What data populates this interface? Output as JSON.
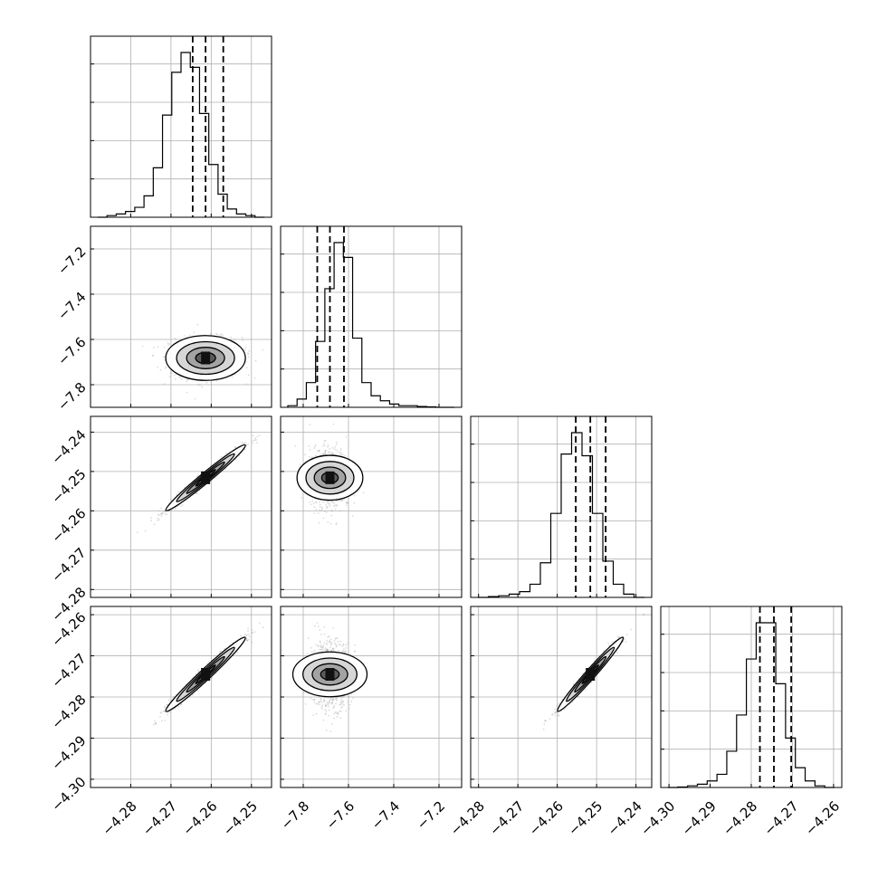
{
  "chart_data": {
    "type": "corner",
    "grid": true,
    "parameters": [
      {
        "range": [
          -4.29,
          -4.245
        ],
        "ticks": [
          -4.28,
          -4.27,
          -4.26,
          -4.25
        ],
        "tick_labels": [
          "−4.28",
          "−4.27",
          "−4.26",
          "−4.25"
        ],
        "quantiles": [
          -4.2646,
          -4.2614,
          -4.257
        ]
      },
      {
        "range": [
          -7.9,
          -7.1
        ],
        "ticks": [
          -7.8,
          -7.6,
          -7.4,
          -7.2
        ],
        "tick_labels": [
          "−7.8",
          "−7.6",
          "−7.4",
          "−7.2"
        ],
        "quantiles": [
          -7.738,
          -7.682,
          -7.62
        ]
      },
      {
        "range": [
          -4.282,
          -4.236
        ],
        "ticks": [
          -4.28,
          -4.27,
          -4.26,
          -4.25,
          -4.24
        ],
        "tick_labels": [
          "−4.28",
          "−4.27",
          "−4.26",
          "−4.25",
          "−4.24"
        ],
        "quantiles": [
          -4.2553,
          -4.2516,
          -4.2477
        ]
      },
      {
        "range": [
          -4.302,
          -4.258
        ],
        "ticks": [
          -4.3,
          -4.29,
          -4.28,
          -4.27,
          -4.26
        ],
        "tick_labels": [
          "−4.30",
          "−4.29",
          "−4.28",
          "−4.27",
          "−4.26"
        ],
        "quantiles": [
          -4.2779,
          -4.2745,
          -4.2703
        ]
      }
    ],
    "histograms": [
      [
        0.0,
        0.01,
        0.02,
        0.035,
        0.06,
        0.13,
        0.3,
        0.62,
        0.88,
        1.0,
        0.91,
        0.63,
        0.32,
        0.14,
        0.05,
        0.02,
        0.01,
        0.0
      ],
      [
        0.01,
        0.05,
        0.15,
        0.4,
        0.72,
        1.0,
        0.91,
        0.42,
        0.15,
        0.07,
        0.04,
        0.02,
        0.01,
        0.01,
        0.005,
        0.003,
        0.0,
        0.0
      ],
      [
        0.0,
        0.005,
        0.01,
        0.02,
        0.035,
        0.08,
        0.21,
        0.51,
        0.87,
        1.0,
        0.86,
        0.51,
        0.22,
        0.08,
        0.02,
        0.0
      ],
      [
        0.0,
        0.003,
        0.01,
        0.02,
        0.04,
        0.08,
        0.22,
        0.44,
        0.78,
        1.0,
        1.0,
        0.63,
        0.3,
        0.12,
        0.04,
        0.01,
        0.0
      ]
    ],
    "posterior": {
      "means": [
        -4.2614,
        -7.682,
        -4.2516,
        -4.2745
      ],
      "sds": [
        0.0045,
        0.045,
        0.0038,
        0.0041
      ],
      "correlations": [
        [
          1.0,
          0.0,
          0.98,
          0.98
        ],
        [
          0.0,
          1.0,
          0.0,
          0.0
        ],
        [
          0.98,
          0.0,
          1.0,
          0.98
        ],
        [
          0.98,
          0.0,
          0.98,
          1.0
        ]
      ]
    }
  }
}
